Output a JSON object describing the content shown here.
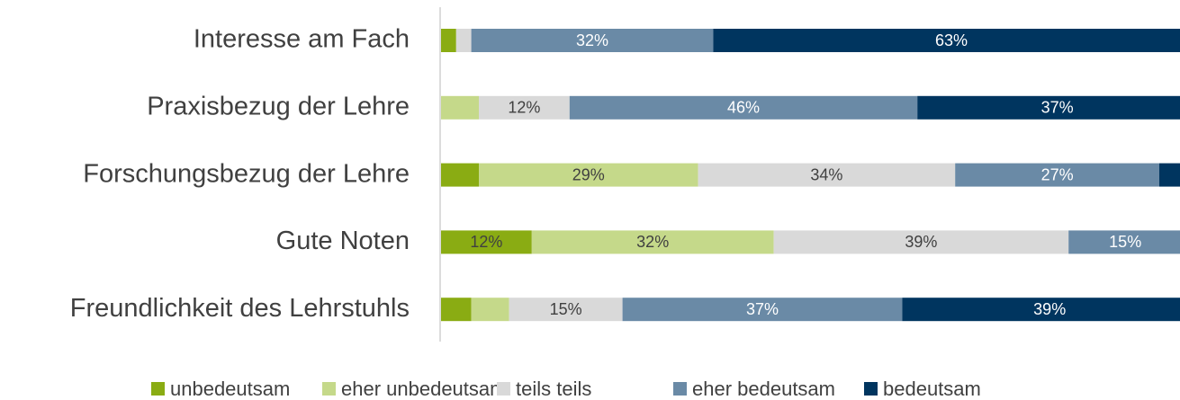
{
  "chart_data": {
    "type": "stacked_barh",
    "categories": [
      "Interesse am Fach",
      "Praxisbezug der Lehre",
      "Forschungsbezug der Lehre",
      "Gute Noten",
      "Freundlichkeit des Lehrstuhls"
    ],
    "series": [
      {
        "name": "unbedeutsam",
        "color": "#8aac13",
        "values": [
          2,
          0,
          5,
          12,
          4
        ],
        "value_labels": [
          null,
          null,
          null,
          "12%",
          null
        ]
      },
      {
        "name": "eher unbedeutsam",
        "color": "#c5d98a",
        "values": [
          0,
          5,
          29,
          32,
          5
        ],
        "value_labels": [
          null,
          null,
          "29%",
          "32%",
          null
        ]
      },
      {
        "name": "teils teils",
        "color": "#d9d9d9",
        "values": [
          2,
          12,
          34,
          39,
          15
        ],
        "value_labels": [
          null,
          "12%",
          "34%",
          "39%",
          "15%"
        ]
      },
      {
        "name": "eher bedeutsam",
        "color": "#6a8aa6",
        "values": [
          32,
          46,
          27,
          15,
          37
        ],
        "value_labels": [
          "32%",
          "46%",
          "27%",
          "15%",
          "37%"
        ]
      },
      {
        "name": "bedeutsam",
        "color": "#00355f",
        "values": [
          63,
          37,
          5,
          1,
          39
        ],
        "value_labels": [
          "63%",
          "37%",
          null,
          null,
          "39%"
        ]
      }
    ],
    "xlim": [
      0,
      100
    ],
    "legend": "bottom"
  }
}
